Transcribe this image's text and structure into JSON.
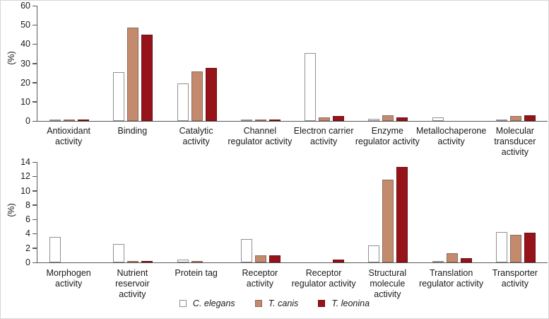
{
  "chart_data": [
    {
      "type": "bar",
      "title": "",
      "xlabel": "",
      "ylabel": "(%)",
      "ylim": [
        0,
        60
      ],
      "yticks": [
        0,
        10,
        20,
        30,
        40,
        50,
        60
      ],
      "grid": false,
      "legend_position": "bottom",
      "categories": [
        "Antioxidant\nactivity",
        "Binding",
        "Catalytic\nactivity",
        "Channel\nregulator activity",
        "Electron carrier\nactivity",
        "Enzyme\nregulator activity",
        "Metallochaperone\nactivity",
        "Molecular\ntransducer\nactivity"
      ],
      "series": [
        {
          "name": "C. elegans",
          "color": "#FFFFFF",
          "border_color": "#909090",
          "values": [
            0.4,
            25.5,
            19.5,
            0.2,
            35.3,
            1.2,
            2.0,
            0.2
          ]
        },
        {
          "name": "T. canis",
          "color": "#C48A6E",
          "border_color": "#8F6B59",
          "values": [
            0.2,
            48.5,
            25.8,
            0.2,
            2.0,
            3.0,
            0,
            2.5
          ]
        },
        {
          "name": "T. leonina",
          "color": "#97131A",
          "border_color": "#6E0E12",
          "values": [
            0.4,
            45.0,
            27.6,
            0.1,
            2.7,
            1.8,
            0,
            2.8
          ]
        }
      ]
    },
    {
      "type": "bar",
      "title": "",
      "xlabel": "",
      "ylabel": "(%)",
      "ylim": [
        0,
        14
      ],
      "yticks": [
        0,
        2,
        4,
        6,
        8,
        10,
        12,
        14
      ],
      "grid": false,
      "legend_position": "bottom",
      "categories": [
        "Morphogen\nactivity",
        "Nutrient\nreservoir\nactivity",
        "Protein tag",
        "Receptor\nactivity",
        "Receptor\nregulator activity",
        "Structural\nmolecule\nactivity",
        "Translation\nregulator activity",
        "Transporter\nactivity"
      ],
      "series": [
        {
          "name": "C. elegans",
          "color": "#FFFFFF",
          "border_color": "#909090",
          "values": [
            3.6,
            2.6,
            0.35,
            3.3,
            0,
            2.4,
            0.1,
            4.2
          ]
        },
        {
          "name": "T. canis",
          "color": "#C48A6E",
          "border_color": "#8F6B59",
          "values": [
            0,
            0.1,
            0.1,
            1.0,
            0,
            11.5,
            1.3,
            3.8
          ]
        },
        {
          "name": "T. leonina",
          "color": "#97131A",
          "border_color": "#6E0E12",
          "values": [
            0,
            0.1,
            0,
            1.0,
            0.35,
            13.3,
            0.6,
            4.1
          ]
        }
      ]
    }
  ]
}
